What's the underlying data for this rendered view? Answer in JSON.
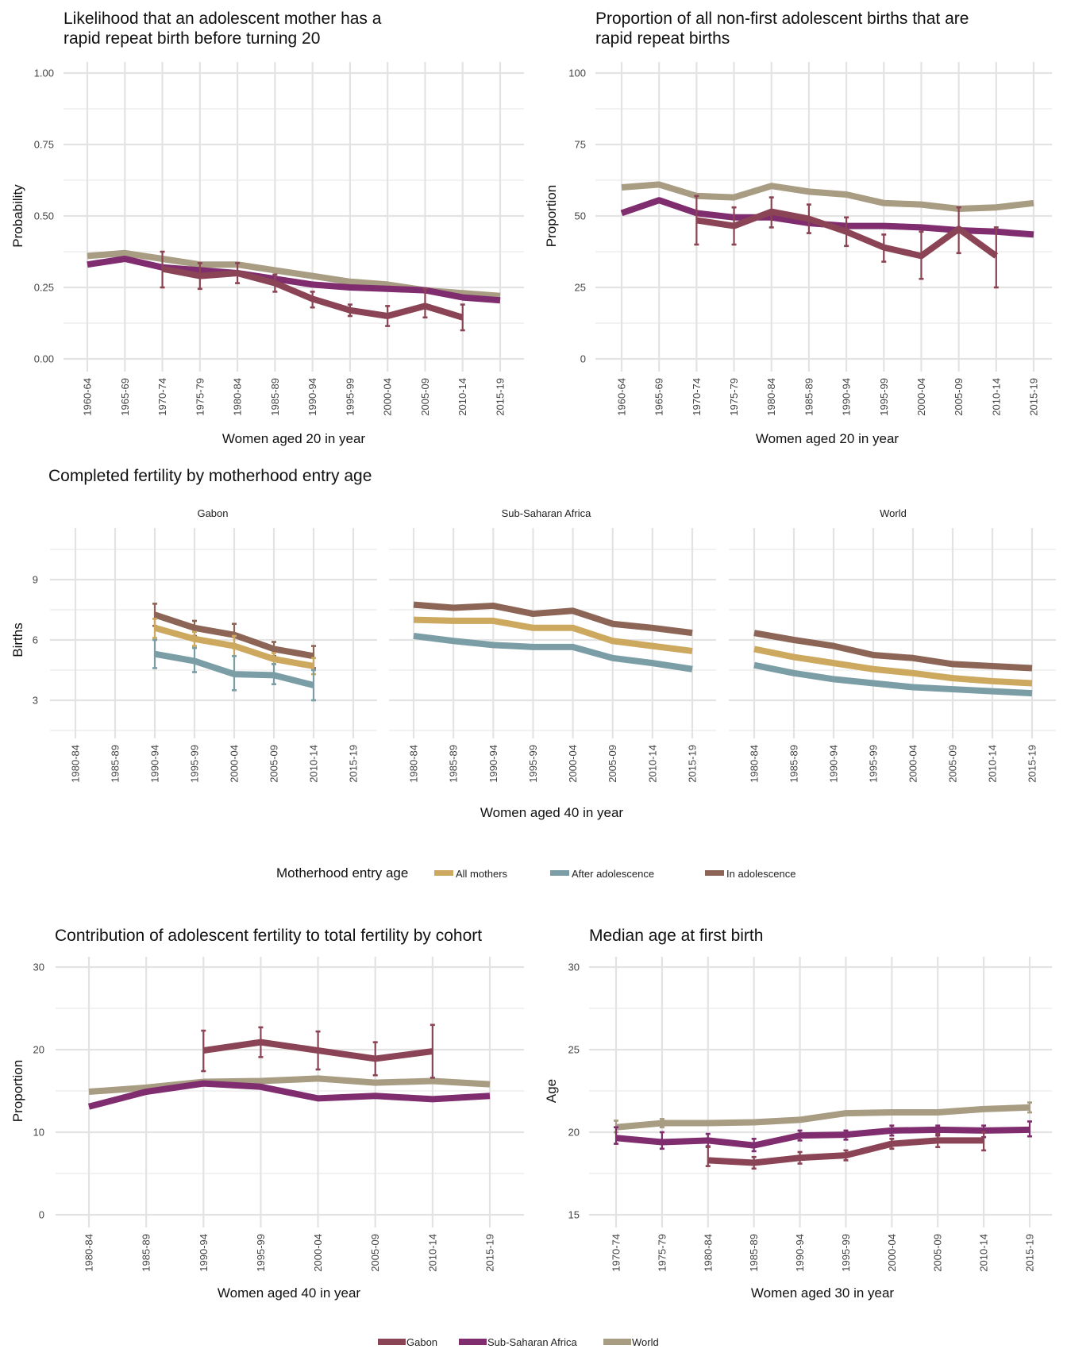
{
  "colors": {
    "Gabon": "#8b4455",
    "Sub-Saharan Africa": "#7f2d6e",
    "World": "#a89c82",
    "All mothers": "#cda85f",
    "After adolescence": "#7b9ea6",
    "In adolescence": "#8d6557"
  },
  "legend_bottom": {
    "items": [
      "Gabon",
      "Sub-Saharan Africa",
      "World"
    ]
  },
  "legend_middle": {
    "title": "Motherhood entry age",
    "items": [
      "All mothers",
      "After adolescence",
      "In adolescence"
    ]
  },
  "chart_data": [
    {
      "id": "rapid-repeat-likelihood",
      "type": "line",
      "title_lines": [
        "Likelihood that an adolescent mother has a",
        "rapid repeat birth before turning 20"
      ],
      "xlabel": "Women aged 20 in year",
      "ylabel": "Probability",
      "categories": [
        "1960-64",
        "1965-69",
        "1970-74",
        "1975-79",
        "1980-84",
        "1985-89",
        "1990-94",
        "1995-99",
        "2000-04",
        "2005-09",
        "2010-14",
        "2015-19"
      ],
      "ylim": [
        0,
        1
      ],
      "yticks": [
        0,
        0.25,
        0.5,
        0.75,
        1.0
      ],
      "ytick_labels": [
        "0.00",
        "0.25",
        "0.50",
        "0.75",
        "1.00"
      ],
      "grid": true,
      "series": [
        {
          "name": "World",
          "values": [
            0.36,
            0.37,
            0.35,
            0.33,
            0.33,
            0.31,
            0.29,
            0.27,
            0.26,
            0.24,
            0.23,
            0.22
          ],
          "err": null
        },
        {
          "name": "Sub-Saharan Africa",
          "values": [
            0.33,
            0.35,
            0.32,
            0.31,
            0.3,
            0.28,
            0.26,
            0.25,
            0.245,
            0.24,
            0.215,
            0.205
          ],
          "err": null
        },
        {
          "name": "Gabon",
          "values": [
            null,
            null,
            0.315,
            0.29,
            0.3,
            0.265,
            0.21,
            0.17,
            0.15,
            0.185,
            0.145,
            null
          ],
          "lower": [
            null,
            null,
            0.25,
            0.245,
            0.265,
            0.235,
            0.18,
            0.15,
            0.115,
            0.145,
            0.1,
            null
          ],
          "upper": [
            null,
            null,
            0.375,
            0.335,
            0.335,
            0.295,
            0.235,
            0.19,
            0.185,
            0.245,
            0.19,
            null
          ]
        }
      ]
    },
    {
      "id": "rapid-repeat-proportion",
      "type": "line",
      "title_lines": [
        "Proportion of all non-first adolescent births that are",
        "rapid repeat births"
      ],
      "xlabel": "Women aged 20 in year",
      "ylabel": "Proportion",
      "categories": [
        "1960-64",
        "1965-69",
        "1970-74",
        "1975-79",
        "1980-84",
        "1985-89",
        "1990-94",
        "1995-99",
        "2000-04",
        "2005-09",
        "2010-14",
        "2015-19"
      ],
      "ylim": [
        0,
        100
      ],
      "yticks": [
        0,
        25,
        50,
        75,
        100
      ],
      "ytick_labels": [
        "0",
        "25",
        "50",
        "75",
        "100"
      ],
      "grid": true,
      "series": [
        {
          "name": "World",
          "values": [
            60,
            61,
            57,
            56.5,
            60.5,
            58.5,
            57.5,
            54.5,
            54,
            52.5,
            53,
            54.5
          ]
        },
        {
          "name": "Sub-Saharan Africa",
          "values": [
            51,
            55.5,
            51,
            49.5,
            49.5,
            47.5,
            46.5,
            46.5,
            46,
            45,
            44.5,
            43.5
          ]
        },
        {
          "name": "Gabon",
          "values": [
            null,
            null,
            48.5,
            46.5,
            51.5,
            49,
            44.5,
            39,
            36,
            45.5,
            36,
            null
          ],
          "lower": [
            null,
            null,
            40,
            40,
            46,
            44,
            39.5,
            34,
            28,
            37,
            25,
            null
          ],
          "upper": [
            null,
            null,
            57,
            53,
            56.5,
            54,
            49.5,
            43.5,
            44.5,
            53,
            46,
            null
          ]
        }
      ]
    },
    {
      "id": "completed-fertility",
      "type": "line",
      "title_lines": [
        "Completed fertility by motherhood entry age"
      ],
      "xlabel": "Women aged 40 in year",
      "ylabel": "Births",
      "categories": [
        "1980-84",
        "1985-89",
        "1990-94",
        "1995-99",
        "2000-04",
        "2005-09",
        "2010-14",
        "2015-19"
      ],
      "ylim": [
        1.2,
        11.5
      ],
      "yticks": [
        3,
        6,
        9
      ],
      "ytick_labels": [
        "3",
        "6",
        "9"
      ],
      "grid": true,
      "legend": "bottom",
      "facets": [
        {
          "name": "Gabon",
          "series": [
            {
              "name": "In adolescence",
              "values": [
                null,
                null,
                7.25,
                6.6,
                6.25,
                5.55,
                5.2,
                null
              ],
              "lower": [
                null,
                null,
                6.7,
                6.2,
                5.6,
                5.2,
                4.6,
                null
              ],
              "upper": [
                null,
                null,
                7.8,
                6.95,
                6.8,
                5.9,
                5.7,
                null
              ]
            },
            {
              "name": "All mothers",
              "values": [
                null,
                null,
                6.6,
                6.05,
                5.7,
                5.05,
                4.7,
                null
              ],
              "lower": [
                null,
                null,
                6.1,
                5.7,
                5.2,
                4.8,
                4.3,
                null
              ],
              "upper": [
                null,
                null,
                7.05,
                6.4,
                6.2,
                5.35,
                5.1,
                null
              ]
            },
            {
              "name": "After adolescence",
              "values": [
                null,
                null,
                5.3,
                4.95,
                4.3,
                4.25,
                3.75,
                null
              ],
              "lower": [
                null,
                null,
                4.6,
                4.4,
                3.5,
                3.8,
                3.0,
                null
              ],
              "upper": [
                null,
                null,
                6.0,
                5.6,
                5.2,
                4.8,
                4.5,
                null
              ]
            }
          ]
        },
        {
          "name": "Sub-Saharan Africa",
          "series": [
            {
              "name": "In adolescence",
              "values": [
                7.75,
                7.6,
                7.7,
                7.3,
                7.45,
                6.8,
                6.6,
                6.35
              ]
            },
            {
              "name": "All mothers",
              "values": [
                7.0,
                6.95,
                6.95,
                6.6,
                6.6,
                5.95,
                5.7,
                5.45
              ]
            },
            {
              "name": "After adolescence",
              "values": [
                6.2,
                5.95,
                5.75,
                5.65,
                5.65,
                5.1,
                4.85,
                4.55
              ]
            }
          ]
        },
        {
          "name": "World",
          "series": [
            {
              "name": "In adolescence",
              "values": [
                6.35,
                6.0,
                5.7,
                5.25,
                5.1,
                4.8,
                4.7,
                4.6
              ]
            },
            {
              "name": "All mothers",
              "values": [
                5.55,
                5.15,
                4.85,
                4.55,
                4.35,
                4.1,
                3.95,
                3.85
              ]
            },
            {
              "name": "After adolescence",
              "values": [
                4.75,
                4.35,
                4.05,
                3.85,
                3.65,
                3.55,
                3.45,
                3.35
              ]
            }
          ]
        }
      ]
    },
    {
      "id": "adolescent-contribution",
      "type": "line",
      "title_lines": [
        "Contribution of adolescent fertility to total fertility by cohort"
      ],
      "xlabel": "Women aged 40 in year",
      "ylabel": "Proportion",
      "categories": [
        "1980-84",
        "1985-89",
        "1990-94",
        "1995-99",
        "2000-04",
        "2005-09",
        "2010-14",
        "2015-19"
      ],
      "ylim": [
        0,
        30
      ],
      "yticks": [
        0,
        10,
        20,
        30
      ],
      "ytick_labels": [
        "0",
        "10",
        "20",
        "30"
      ],
      "grid": true,
      "series": [
        {
          "name": "World",
          "values": [
            14.9,
            15.4,
            16.1,
            16.2,
            16.5,
            16.0,
            16.2,
            15.8
          ]
        },
        {
          "name": "Sub-Saharan Africa",
          "values": [
            13.1,
            14.9,
            15.9,
            15.5,
            14.1,
            14.4,
            14.0,
            14.4
          ]
        },
        {
          "name": "Gabon",
          "values": [
            null,
            null,
            19.9,
            20.9,
            19.9,
            18.9,
            19.8,
            null
          ],
          "lower": [
            null,
            null,
            17.4,
            19.1,
            17.6,
            16.9,
            16.6,
            null
          ],
          "upper": [
            null,
            null,
            22.3,
            22.7,
            22.2,
            20.9,
            23.0,
            null
          ]
        }
      ]
    },
    {
      "id": "median-age-first-birth",
      "type": "line",
      "title_lines": [
        "Median age at first birth"
      ],
      "xlabel": "Women aged 30 in year",
      "ylabel": "Age",
      "categories": [
        "1970-74",
        "1975-79",
        "1980-84",
        "1985-89",
        "1990-94",
        "1995-99",
        "2000-04",
        "2005-09",
        "2010-14",
        "2015-19"
      ],
      "ylim": [
        15,
        30
      ],
      "yticks": [
        15,
        20,
        25,
        30
      ],
      "ytick_labels": [
        "15",
        "20",
        "25",
        "30"
      ],
      "grid": true,
      "series": [
        {
          "name": "World",
          "values": [
            20.3,
            20.55,
            20.55,
            20.6,
            20.75,
            21.15,
            21.2,
            21.2,
            21.4,
            21.5
          ],
          "lower": [
            20.0,
            20.3,
            null,
            null,
            null,
            null,
            null,
            null,
            null,
            21.2
          ],
          "upper": [
            20.7,
            20.8,
            null,
            null,
            null,
            null,
            null,
            null,
            null,
            21.8
          ]
        },
        {
          "name": "Sub-Saharan Africa",
          "values": [
            19.65,
            19.4,
            19.5,
            19.2,
            19.8,
            19.85,
            20.1,
            20.15,
            20.1,
            20.15
          ],
          "lower": [
            19.3,
            19.0,
            19.15,
            18.85,
            19.5,
            19.55,
            19.8,
            19.8,
            19.7,
            19.75
          ],
          "upper": [
            20.3,
            20.0,
            19.9,
            19.6,
            20.1,
            20.1,
            20.4,
            20.4,
            20.4,
            20.65
          ]
        },
        {
          "name": "Gabon",
          "values": [
            null,
            null,
            18.3,
            18.15,
            18.45,
            18.6,
            19.3,
            19.5,
            19.5,
            null
          ],
          "lower": [
            null,
            null,
            17.95,
            17.8,
            18.1,
            18.3,
            19.0,
            19.1,
            18.9,
            null
          ],
          "upper": [
            null,
            null,
            19.1,
            18.5,
            18.8,
            18.9,
            19.6,
            19.9,
            20.0,
            null
          ]
        }
      ]
    }
  ]
}
